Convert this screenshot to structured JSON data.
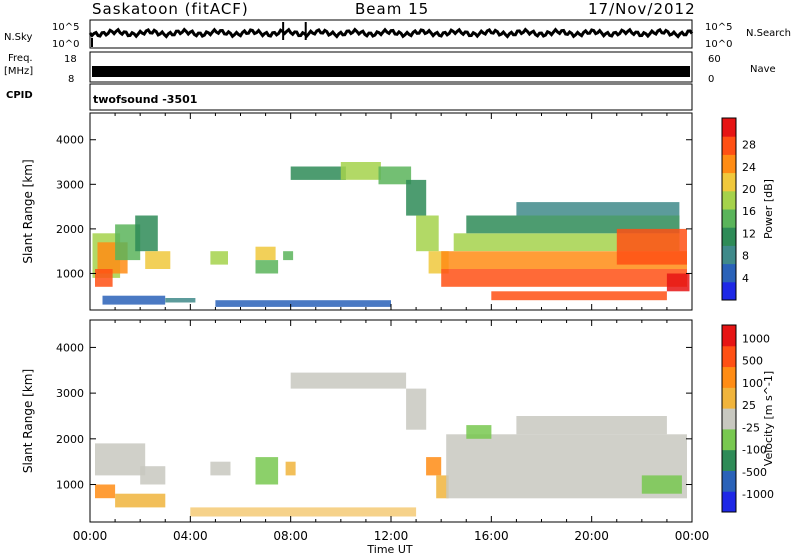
{
  "header": {
    "station": "Saskatoon (fitACF)",
    "beam": "Beam 15",
    "date": "17/Nov/2012"
  },
  "nsky_panel": {
    "label": "N.Sky",
    "tick_top": "10^5",
    "tick_bottom": "10^0",
    "right_top": "10^5",
    "right_bottom": "10^0",
    "right_label": "N.Search"
  },
  "freq_panel": {
    "label_line1": "Freq.",
    "label_line2": "[MHz]",
    "left_top": "18",
    "left_bottom": "8",
    "right_top": "60",
    "right_bottom": "0",
    "right_label": "Nave"
  },
  "cpid": {
    "label": "CPID",
    "value": "twofsound -3501"
  },
  "colors": {
    "power": [
      "#1e28e6",
      "#2a62b8",
      "#3f8a8a",
      "#2e8b57",
      "#5ab45a",
      "#a5d24b",
      "#f0c83c",
      "#ff8c14",
      "#ff5014",
      "#e61414"
    ],
    "velocity": [
      "#e61414",
      "#ff5014",
      "#ff8c14",
      "#f0b43c",
      "#c8c8c0",
      "#78c850",
      "#2e8b57",
      "#2a62b8",
      "#1e28e6"
    ]
  },
  "chart_data": [
    {
      "type": "heatmap",
      "name": "power",
      "xlabel": "",
      "ylabel": "Slant Range [km]",
      "x_ticks": [
        "00:00",
        "04:00",
        "08:00",
        "12:00",
        "16:00",
        "20:00",
        "00:00"
      ],
      "x_range_hours": [
        0,
        24
      ],
      "ylim": [
        180,
        4600
      ],
      "y_ticks": [
        1000,
        2000,
        3000,
        4000
      ],
      "colorbar_label": "Power [dB]",
      "colorbar_ticks": [
        "4",
        "8",
        "12",
        "16",
        "20",
        "24",
        "28"
      ],
      "colorbar_range": [
        0,
        30
      ]
    },
    {
      "type": "heatmap",
      "name": "velocity",
      "xlabel": "Time UT",
      "ylabel": "Slant Range [km]",
      "x_ticks": [
        "00:00",
        "04:00",
        "08:00",
        "12:00",
        "16:00",
        "20:00",
        "00:00"
      ],
      "x_range_hours": [
        0,
        24
      ],
      "ylim": [
        180,
        4600
      ],
      "y_ticks": [
        1000,
        2000,
        3000,
        4000
      ],
      "colorbar_label": "Velocity [m s^-1]",
      "colorbar_ticks": [
        "1000",
        "500",
        "100",
        "25",
        "-25",
        "-100",
        "-500",
        "-1000"
      ]
    }
  ]
}
